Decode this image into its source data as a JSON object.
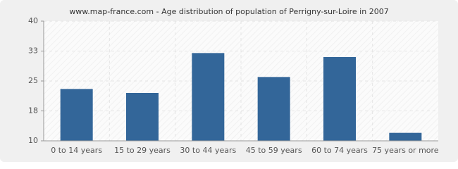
{
  "chart_data": {
    "type": "bar",
    "title": "www.map-france.com - Age distribution of population of Perrigny-sur-Loire in 2007",
    "categories": [
      "0 to 14 years",
      "15 to 29 years",
      "30 to 44 years",
      "45 to 59 years",
      "60 to 74 years",
      "75 years or more"
    ],
    "values": [
      23,
      22,
      32,
      26,
      31,
      12
    ],
    "color": "#336699",
    "ylim": [
      10,
      40
    ],
    "yticks": [
      10,
      {
        "value": 17.5,
        "label": "18"
      },
      25,
      {
        "value": 32.5,
        "label": "33"
      },
      40
    ],
    "grid": true
  }
}
